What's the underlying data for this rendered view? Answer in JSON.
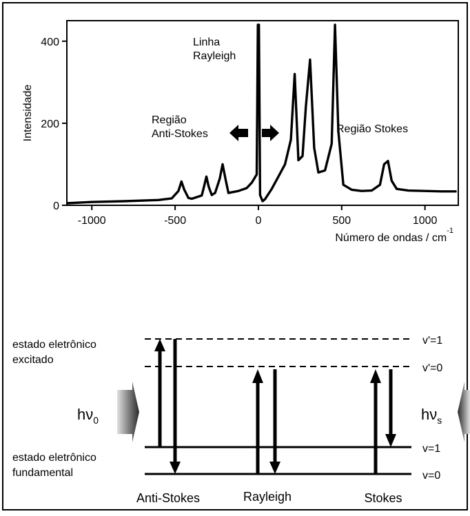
{
  "chart_data": {
    "type": "line",
    "title": "",
    "xlabel": "Número de ondas / cm",
    "xlabel_superscript": "-1",
    "ylabel": "Intensidade",
    "xlim": [
      -1150,
      1200
    ],
    "ylim": [
      0,
      450
    ],
    "x_ticks": [
      -1000,
      -500,
      0,
      500,
      1000
    ],
    "y_ticks": [
      0,
      200,
      400
    ],
    "grid": false,
    "series": [
      {
        "x": [
          -1150,
          -1000,
          -800,
          -600,
          -520,
          -480,
          -462,
          -445,
          -420,
          -400,
          -340,
          -325,
          -312,
          -298,
          -280,
          -260,
          -232,
          -215,
          -198,
          -180,
          -120,
          -70,
          -40,
          -10,
          -3,
          3,
          10,
          25,
          40,
          80,
          120,
          160,
          195,
          218,
          240,
          265,
          285,
          310,
          335,
          360,
          400,
          440,
          460,
          480,
          510,
          560,
          620,
          680,
          730,
          755,
          778,
          800,
          830,
          900,
          1000,
          1100,
          1190
        ],
        "y": [
          5,
          8,
          10,
          13,
          17,
          35,
          58,
          38,
          18,
          16,
          24,
          48,
          70,
          45,
          25,
          30,
          65,
          100,
          65,
          30,
          35,
          42,
          55,
          75,
          440,
          440,
          25,
          10,
          15,
          40,
          70,
          100,
          160,
          320,
          110,
          120,
          240,
          355,
          140,
          80,
          85,
          150,
          440,
          180,
          50,
          38,
          35,
          36,
          50,
          100,
          108,
          60,
          40,
          36,
          35,
          34,
          34
        ]
      }
    ],
    "annotations": {
      "rayleigh_line": "Linha\nRayleigh",
      "anti_stokes_region": "Região\nAnti-Stokes",
      "stokes_region": "Região Stokes"
    }
  },
  "diagram": {
    "state_excited": "estado eletrônico\nexcitado",
    "state_ground": "estado eletrônico\nfundamental",
    "levels": {
      "v_prime_1": "v'=1",
      "v_prime_0": "v'=0",
      "v_1": "v=1",
      "v_0": "v=0"
    },
    "h_nu_0_base": "hν",
    "h_nu_0_sub": "0",
    "h_nu_s_base": "hν",
    "h_nu_s_sub": "s",
    "process_labels": [
      "Anti-Stokes",
      "Rayleigh",
      "Stokes"
    ]
  }
}
